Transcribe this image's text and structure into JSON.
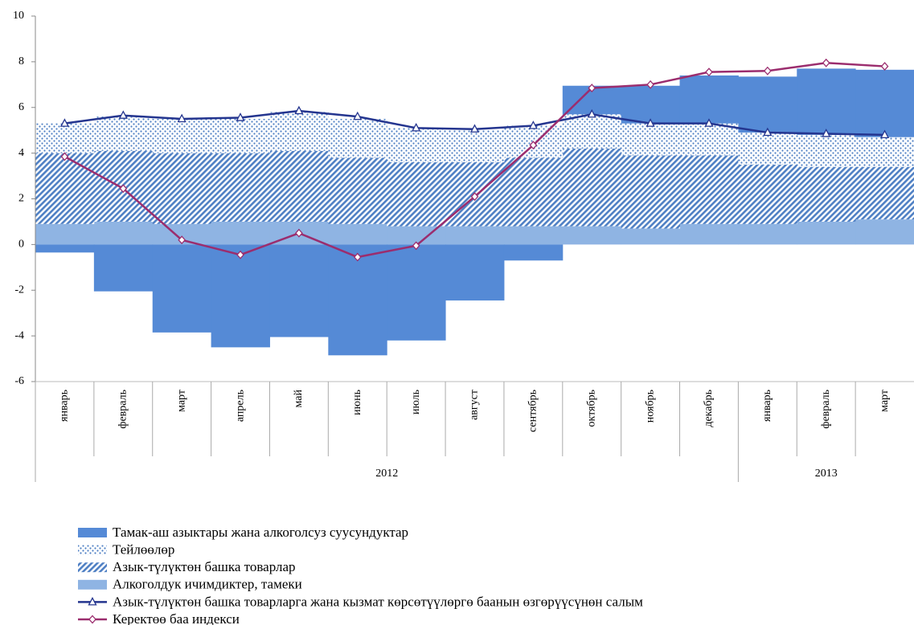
{
  "chart_data": {
    "type": "bar",
    "stacked": true,
    "categories": [
      "январь",
      "февраль",
      "март",
      "апрель",
      "май",
      "июнь",
      "июль",
      "август",
      "сентябрь",
      "октябрь",
      "ноябрь",
      "декабрь",
      "январь",
      "февраль",
      "март"
    ],
    "groups": [
      {
        "label": "2012",
        "size": 12
      },
      {
        "label": "2013",
        "size": 3
      }
    ],
    "series": [
      {
        "name": "Тамак-аш азыктары жана алкоголсуз суусундуктар",
        "type": "bar",
        "color": "#558ad6",
        "pattern": "solid",
        "values": [
          -0.35,
          -2.05,
          -3.85,
          -4.5,
          -4.05,
          -4.85,
          -4.2,
          -2.45,
          -0.7,
          1.25,
          1.65,
          2.1,
          2.45,
          2.9,
          2.95
        ]
      },
      {
        "name": "Тейлөөлөр",
        "type": "bar",
        "color": "#4f80c4",
        "pattern": "dots",
        "values": [
          1.3,
          1.5,
          1.5,
          1.5,
          1.7,
          1.7,
          1.5,
          1.4,
          1.4,
          1.5,
          1.4,
          1.4,
          1.4,
          1.4,
          1.3
        ]
      },
      {
        "name": "Азык-түлүктөн башка товарлар",
        "type": "bar",
        "color": "#4f80c4",
        "pattern": "hatch",
        "values": [
          3.1,
          3.1,
          3.1,
          3.0,
          3.1,
          2.9,
          2.8,
          2.8,
          3.0,
          3.4,
          3.2,
          3.0,
          2.6,
          2.4,
          2.3
        ]
      },
      {
        "name": "Алкоголдук ичимдиктер, тамеки",
        "type": "bar",
        "color": "#8fb4e3",
        "pattern": "solid",
        "values": [
          0.9,
          1.0,
          0.9,
          1.0,
          1.0,
          0.9,
          0.8,
          0.8,
          0.8,
          0.8,
          0.7,
          0.9,
          0.9,
          1.0,
          1.1
        ]
      },
      {
        "name": "Азык-түлүктөн башка товарларга жана кызмат көрсөтүүлөргө баанын өзгөрүүсүнөн салым",
        "type": "line",
        "color": "#24358f",
        "marker": "triangle",
        "values": [
          5.3,
          5.65,
          5.5,
          5.55,
          5.85,
          5.6,
          5.1,
          5.05,
          5.2,
          5.7,
          5.3,
          5.3,
          4.9,
          4.85,
          4.8
        ]
      },
      {
        "name": "Керектөө баа индекси",
        "type": "line",
        "color": "#9b2d6e",
        "marker": "diamond",
        "values": [
          3.85,
          2.45,
          0.2,
          -0.45,
          0.5,
          -0.55,
          -0.05,
          2.1,
          4.35,
          6.85,
          7.0,
          7.55,
          7.6,
          7.95,
          7.8
        ]
      }
    ],
    "ylim": [
      -6,
      10
    ],
    "yticks": [
      -6,
      -4,
      -2,
      0,
      2,
      4,
      6,
      8,
      10
    ],
    "grid": false
  }
}
